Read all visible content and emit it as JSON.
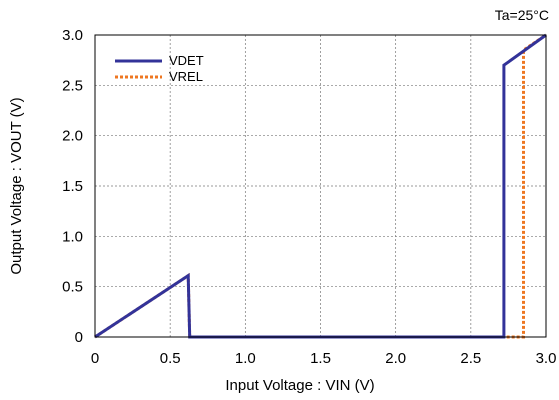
{
  "chart_data": {
    "type": "line",
    "title": "",
    "annotation": "Ta=25°C",
    "xlabel": "Input Voltage : VIN (V)",
    "ylabel": "Output Voltage : VOUT (V)",
    "xlim": [
      0,
      3.0
    ],
    "ylim": [
      0,
      3.0
    ],
    "xticks": [
      "0",
      "0.5",
      "1.0",
      "1.5",
      "2.0",
      "2.5",
      "3.0"
    ],
    "yticks": [
      "0",
      "0.5",
      "1.0",
      "1.5",
      "2.0",
      "2.5",
      "3.0"
    ],
    "grid": true,
    "legend_position": "top-left",
    "series": [
      {
        "name": "VDET",
        "color": "#333399",
        "style": "solid",
        "points": [
          [
            0,
            0
          ],
          [
            0.62,
            0.61
          ],
          [
            0.63,
            0
          ],
          [
            2.72,
            0
          ],
          [
            2.72,
            2.7
          ],
          [
            3.0,
            3.0
          ]
        ]
      },
      {
        "name": "VREL",
        "color": "#ee7722",
        "style": "dotted",
        "points": [
          [
            0,
            0
          ],
          [
            0.62,
            0.61
          ],
          [
            0.63,
            0
          ],
          [
            2.85,
            0
          ],
          [
            2.85,
            2.85
          ],
          [
            3.0,
            3.0
          ]
        ]
      }
    ]
  }
}
